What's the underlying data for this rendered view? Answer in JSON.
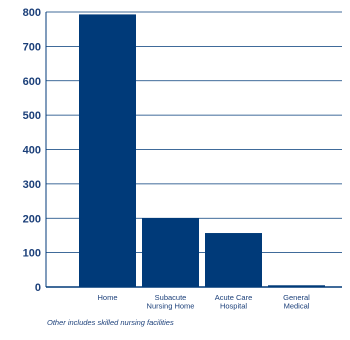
{
  "chart_data": {
    "type": "bar",
    "categories": [
      "Home",
      "Subacute\nNursing Home",
      "Acute Care\nHospital",
      "General\nMedical"
    ],
    "values": [
      793,
      200,
      157,
      5
    ],
    "ylim": [
      0,
      800
    ],
    "yticks": [
      0,
      100,
      200,
      300,
      400,
      500,
      600,
      700,
      800
    ],
    "grid": true,
    "bar_color": "#003a79",
    "grid_color": "#003a79",
    "title": "",
    "xlabel": "",
    "ylabel": ""
  },
  "footnote": "Other includes skilled nursing facilities"
}
